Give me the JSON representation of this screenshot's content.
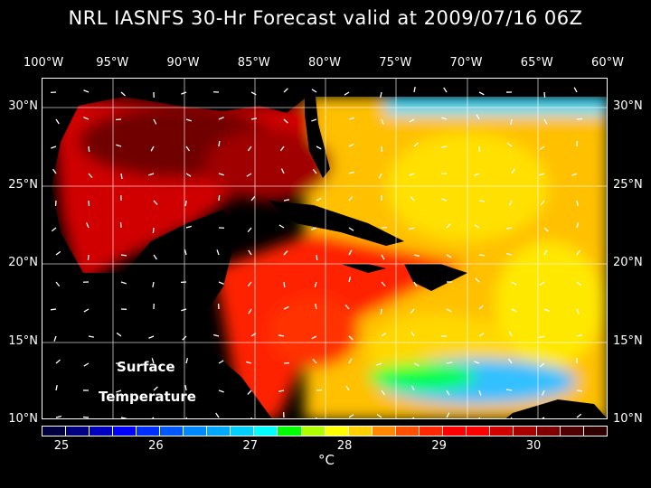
{
  "title": "NRL IASNFS  30-Hr Forecast valid at 2009/07/16 06Z",
  "lon_labels": [
    "100°W",
    "95°W",
    "90°W",
    "85°W",
    "80°W",
    "75°W",
    "70°W",
    "65°W",
    "60°W"
  ],
  "lat_labels": [
    "30°N",
    "25°N",
    "20°N",
    "15°N",
    "10°N"
  ],
  "overlay": {
    "line1": "Surface",
    "line2": "Temperature"
  },
  "colorbar": {
    "colors": [
      "#000040",
      "#000080",
      "#0000c0",
      "#0000ff",
      "#0030ff",
      "#0058ff",
      "#0088ff",
      "#00a8ff",
      "#00d0ff",
      "#00ffff",
      "#00ff00",
      "#b0ff00",
      "#ffff00",
      "#ffd000",
      "#ff8800",
      "#ff5000",
      "#ff2800",
      "#ff0000",
      "#ff0000",
      "#d00000",
      "#a80000",
      "#800000",
      "#500000",
      "#300000"
    ],
    "tick_labels": [
      "25",
      "26",
      "27",
      "28",
      "29",
      "30"
    ],
    "unit": "°C"
  }
}
